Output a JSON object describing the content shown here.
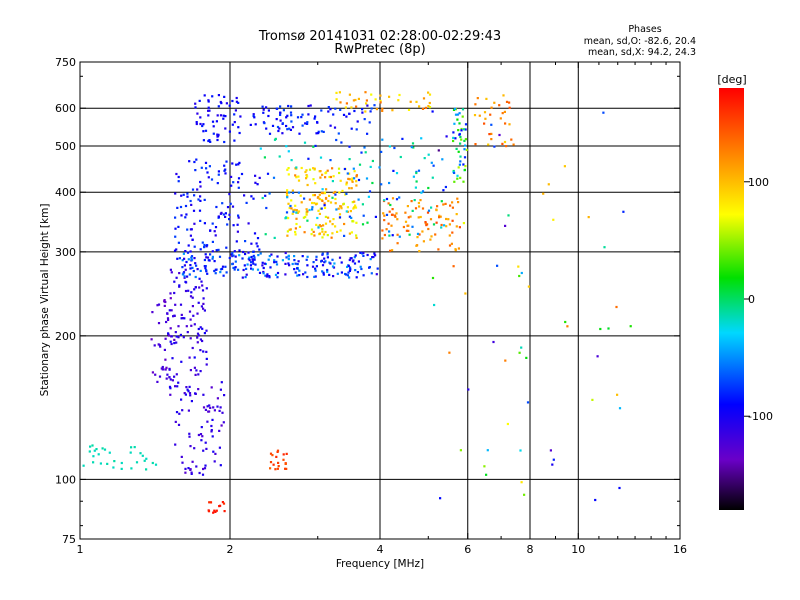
{
  "chart_data": {
    "type": "scatter",
    "title": "Tromsø 20141031 02:28:00-02:29:43",
    "subtitle": "RwPretec (8p)",
    "xlabel": "Frequency [MHz]",
    "ylabel": "Stationary phase Virtual Height [km]",
    "x_scale": "log",
    "y_scale": "log",
    "xlim": [
      1,
      16
    ],
    "ylim": [
      75,
      750
    ],
    "x_ticks": [
      1,
      2,
      4,
      6,
      8,
      10,
      16
    ],
    "x_tick_labels": [
      "1",
      "2",
      "4",
      "6",
      "8",
      "10",
      "16"
    ],
    "y_ticks": [
      75,
      100,
      200,
      300,
      400,
      500,
      600,
      750
    ],
    "y_tick_labels": [
      "75",
      "100",
      "200",
      "300",
      "400",
      "500",
      "600",
      "750"
    ],
    "grid": true,
    "info": {
      "heading": "Phases",
      "line1": "mean, sd,O: -82.6, 20.4",
      "line2": "mean, sd,X:  94.2, 24.3"
    },
    "colorbar": {
      "label": "[deg]",
      "range": [
        -180,
        180
      ],
      "ticks": [
        -100,
        0,
        100
      ],
      "tick_labels": [
        "-100",
        "0",
        "100"
      ]
    },
    "point_groups": [
      {
        "x": [
          1.0,
          1.42
        ],
        "y": [
          105,
          118
        ],
        "phase": [
          -12,
          -18
        ],
        "count": 30
      },
      {
        "x": [
          1.38,
          1.55
        ],
        "y": [
          160,
          240
        ],
        "phase": [
          -140,
          -112
        ],
        "count": 40
      },
      {
        "x": [
          1.5,
          1.8
        ],
        "y": [
          150,
          280
        ],
        "phase": [
          -125,
          -95
        ],
        "count": 110
      },
      {
        "x": [
          1.55,
          1.95
        ],
        "y": [
          102,
          160
        ],
        "phase": [
          -130,
          -100
        ],
        "count": 80
      },
      {
        "x": [
          1.55,
          2.3
        ],
        "y": [
          280,
          470
        ],
        "phase": [
          -110,
          -70
        ],
        "count": 160
      },
      {
        "x": [
          1.7,
          2.1
        ],
        "y": [
          510,
          640
        ],
        "phase": [
          -110,
          -80
        ],
        "count": 60
      },
      {
        "x": [
          2.2,
          3.9
        ],
        "y": [
          530,
          610
        ],
        "phase": [
          -105,
          -65
        ],
        "count": 90
      },
      {
        "x": [
          3.2,
          5.1
        ],
        "y": [
          590,
          650
        ],
        "phase": [
          65,
          135
        ],
        "count": 40
      },
      {
        "x": [
          1.6,
          4.0
        ],
        "y": [
          265,
          300
        ],
        "phase": [
          -110,
          -40
        ],
        "count": 210
      },
      {
        "x": [
          4.0,
          5.8
        ],
        "y": [
          300,
          390
        ],
        "phase": [
          100,
          150
        ],
        "count": 90
      },
      {
        "x": [
          2.6,
          3.6
        ],
        "y": [
          320,
          450
        ],
        "phase": [
          60,
          130
        ],
        "count": 180
      },
      {
        "x": [
          2.3,
          5.5
        ],
        "y": [
          320,
          520
        ],
        "phase": [
          -90,
          10
        ],
        "count": 130
      },
      {
        "x": [
          5.6,
          6.0
        ],
        "y": [
          420,
          600
        ],
        "phase": [
          -95,
          60
        ],
        "count": 50
      },
      {
        "x": [
          6.2,
          7.5
        ],
        "y": [
          500,
          640
        ],
        "phase": [
          90,
          150
        ],
        "count": 30
      },
      {
        "x": [
          2.4,
          2.6
        ],
        "y": [
          105,
          115
        ],
        "phase": [
          140,
          165
        ],
        "count": 20
      },
      {
        "x": [
          1.8,
          1.95
        ],
        "y": [
          85,
          90
        ],
        "phase": [
          160,
          175
        ],
        "count": 14
      },
      {
        "x": [
          5.0,
          13.0
        ],
        "y": [
          90,
          600
        ],
        "phase": [
          -150,
          150
        ],
        "count": 60
      }
    ]
  }
}
